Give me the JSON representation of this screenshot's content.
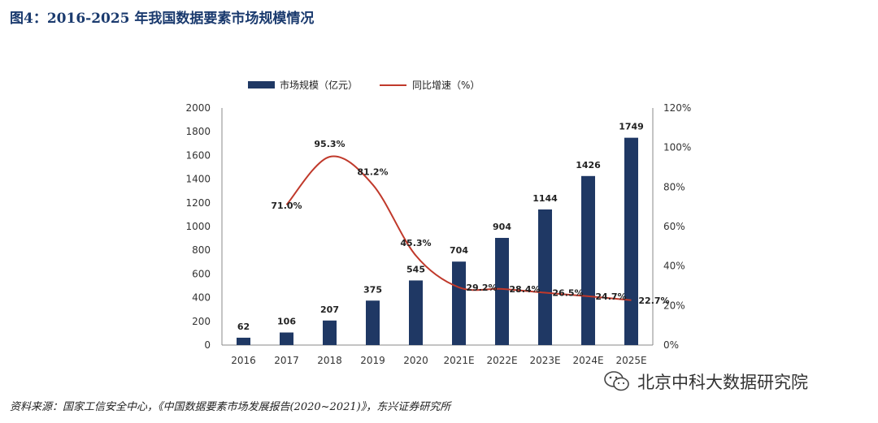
{
  "title": "图4：2016-2025 年我国数据要素市场规模情况",
  "source": "资料来源：国家工信安全中心，《中国数据要素市场发展报告(2020~2021)》，东兴证券研究所",
  "watermark": "北京中科大数据研究院",
  "chart_data": {
    "type": "bar",
    "categories": [
      "2016",
      "2017",
      "2018",
      "2019",
      "2020",
      "2021E",
      "2022E",
      "2023E",
      "2024E",
      "2025E"
    ],
    "series": [
      {
        "name": "市场规模（亿元）",
        "type": "bar",
        "axis": "left",
        "color": "#1f3864",
        "values": [
          62,
          106,
          207,
          375,
          545,
          704,
          904,
          1144,
          1426,
          1749
        ],
        "labels": [
          "62",
          "106",
          "207",
          "375",
          "545",
          "704",
          "904",
          "1144",
          "1426",
          "1749"
        ]
      },
      {
        "name": "同比增速（%）",
        "type": "line",
        "axis": "right",
        "color": "#c0392b",
        "values": [
          null,
          71.0,
          95.3,
          81.2,
          45.3,
          29.2,
          28.4,
          26.5,
          24.7,
          22.7
        ],
        "labels": [
          "",
          "71.0%",
          "95.3%",
          "81.2%",
          "45.3%",
          "29.2%",
          "28.4%",
          "26.5%",
          "24.7%",
          "22.7%"
        ]
      }
    ],
    "yleft": {
      "min": 0,
      "max": 2000,
      "ticks": [
        "0",
        "200",
        "400",
        "600",
        "800",
        "1000",
        "1200",
        "1400",
        "1600",
        "1800",
        "2000"
      ]
    },
    "yright": {
      "min": 0,
      "max": 120,
      "ticks": [
        "0%",
        "20%",
        "40%",
        "60%",
        "80%",
        "100%",
        "120%"
      ]
    },
    "grid": false,
    "legend": "top-left"
  }
}
